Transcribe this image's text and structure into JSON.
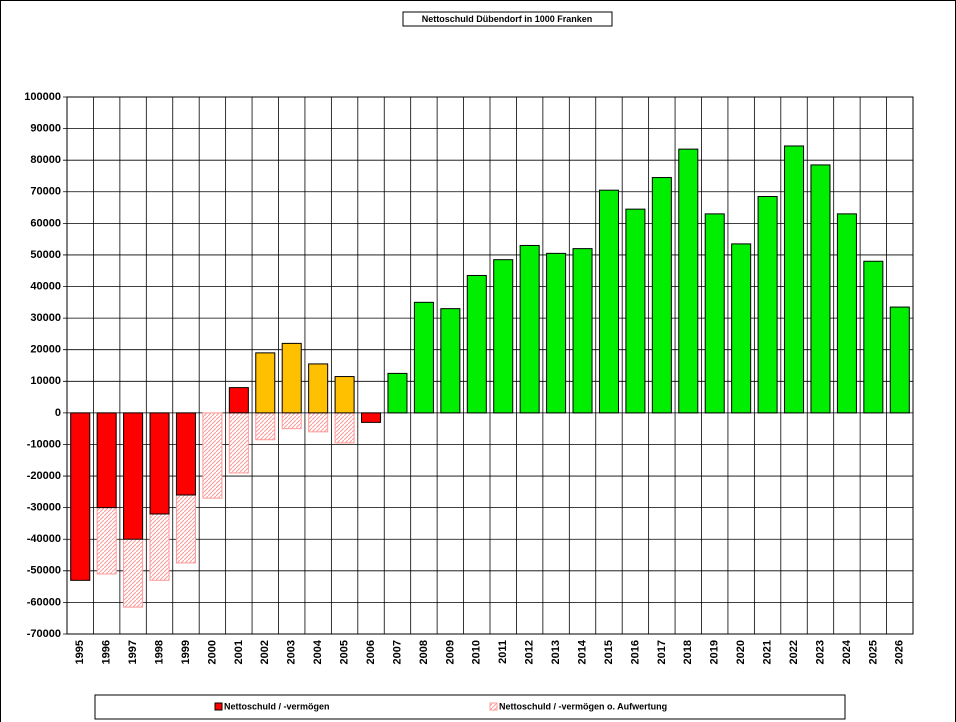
{
  "chart_data": {
    "type": "bar",
    "title": "Nettoschuld Dübendorf in 1000 Franken",
    "categories": [
      "1995",
      "1996",
      "1997",
      "1998",
      "1999",
      "2000",
      "2001",
      "2002",
      "2003",
      "2004",
      "2005",
      "2006",
      "2007",
      "2008",
      "2009",
      "2010",
      "2011",
      "2012",
      "2013",
      "2014",
      "2015",
      "2016",
      "2017",
      "2018",
      "2019",
      "2020",
      "2021",
      "2022",
      "2023",
      "2024",
      "2025",
      "2026"
    ],
    "series": [
      {
        "name": "Nettoschuld / -vermögen o. Aufwertung",
        "color": "#ff9999",
        "values": [
          -53000,
          -51000,
          -61500,
          -53000,
          -47500,
          -27000,
          -19000,
          -8500,
          -5000,
          -6000,
          -9500,
          -3000,
          null,
          null,
          null,
          null,
          null,
          null,
          null,
          null,
          null,
          null,
          null,
          null,
          null,
          null,
          null,
          null,
          null,
          null,
          null,
          null
        ]
      },
      {
        "name": "Nettoschuld / -vermögen",
        "color": "#ff0000",
        "colors": [
          "#ff0000",
          "#ff0000",
          "#ff0000",
          "#ff0000",
          "#ff0000",
          "#ff0000",
          "#ff0000",
          "#ffc000",
          "#ffc000",
          "#ffc000",
          "#ffc000",
          "#ff0000",
          "#00ee00",
          "#00ee00",
          "#00ee00",
          "#00ee00",
          "#00ee00",
          "#00ee00",
          "#00ee00",
          "#00ee00",
          "#00ee00",
          "#00ee00",
          "#00ee00",
          "#00ee00",
          "#00ee00",
          "#00ee00",
          "#00ee00",
          "#00ee00",
          "#00ee00",
          "#00ee00",
          "#00ee00",
          "#00ee00"
        ],
        "values": [
          -53000,
          -30000,
          -40000,
          -32000,
          -26000,
          null,
          8000,
          19000,
          22000,
          15500,
          11500,
          -3000,
          12500,
          35000,
          33000,
          43500,
          48500,
          53000,
          50500,
          52000,
          70500,
          64500,
          74500,
          83500,
          63000,
          53500,
          68500,
          84500,
          78500,
          63000,
          48000,
          33500
        ]
      }
    ],
    "ylim": [
      -70000,
      100000
    ],
    "yticks": [
      -70000,
      -60000,
      -50000,
      -40000,
      -30000,
      -20000,
      -10000,
      0,
      10000,
      20000,
      30000,
      40000,
      50000,
      60000,
      70000,
      80000,
      90000,
      100000
    ],
    "grid": true,
    "legend": "bottom"
  }
}
